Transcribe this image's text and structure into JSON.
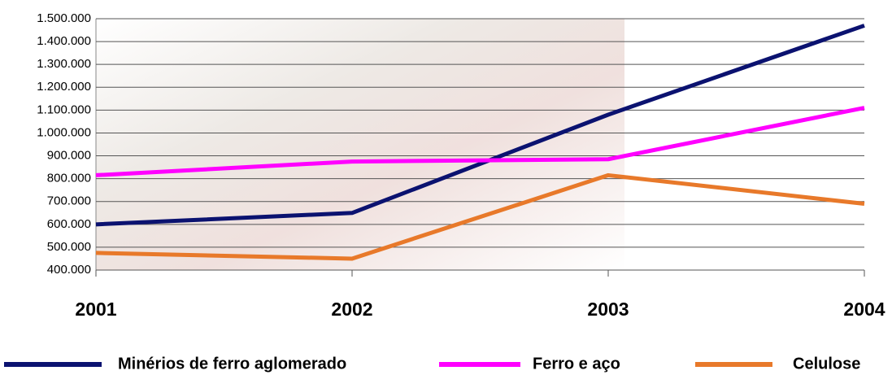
{
  "chart_data": {
    "type": "line",
    "categories": [
      "2001",
      "2002",
      "2003",
      "2004"
    ],
    "series": [
      {
        "name": "Minérios de ferro aglomerado",
        "color": "#0b1270",
        "values": [
          600000,
          650000,
          1080000,
          1470000
        ]
      },
      {
        "name": "Ferro e aço",
        "color": "#ff00ff",
        "values": [
          815000,
          875000,
          885000,
          1110000
        ]
      },
      {
        "name": "Celulose",
        "color": "#e8792a",
        "values": [
          475000,
          450000,
          815000,
          690000
        ]
      }
    ],
    "ylim": [
      400000,
      1500000
    ],
    "yticks": [
      {
        "value": 400000,
        "label": "400.000"
      },
      {
        "value": 500000,
        "label": "500.000"
      },
      {
        "value": 600000,
        "label": "600.000"
      },
      {
        "value": 700000,
        "label": "700.000"
      },
      {
        "value": 800000,
        "label": "800.000"
      },
      {
        "value": 900000,
        "label": "900.000"
      },
      {
        "value": 1000000,
        "label": "1.000.000"
      },
      {
        "value": 1100000,
        "label": "1.100.000"
      },
      {
        "value": 1200000,
        "label": "1.200.000"
      },
      {
        "value": 1300000,
        "label": "1.300.000"
      },
      {
        "value": 1400000,
        "label": "1.400.000"
      },
      {
        "value": 1500000,
        "label": "1.500.000"
      }
    ],
    "grid": true
  }
}
